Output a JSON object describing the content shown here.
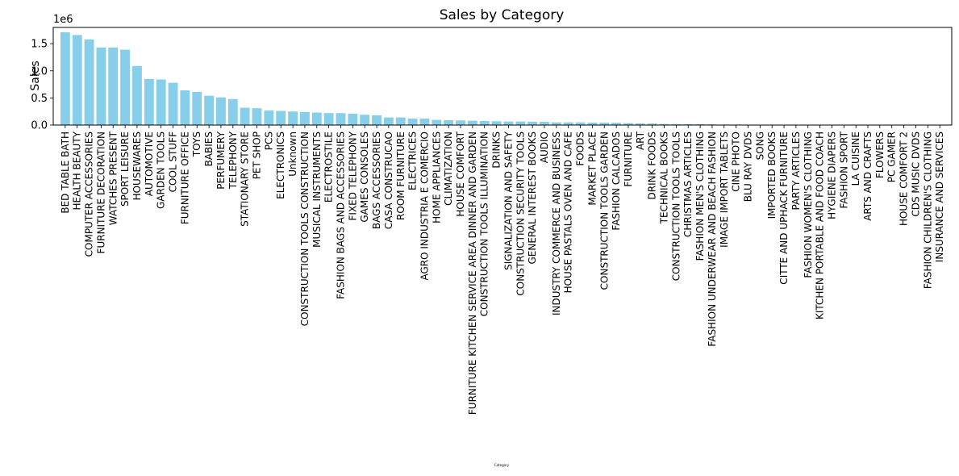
{
  "chart_data": {
    "type": "bar",
    "title": "Sales by Category",
    "xlabel": "Category",
    "ylabel": "Sales",
    "y_multiplier_label": "1e6",
    "ylim": [
      0,
      1.8
    ],
    "yticks": [
      0.0,
      0.5,
      1.0,
      1.5
    ],
    "ytick_labels": [
      "0.0",
      "0.5",
      "1.0",
      "1.5"
    ],
    "bar_color": "#87ceeb",
    "grid": false,
    "categories": [
      "BED TABLE BATH",
      "HEALTH BEAUTY",
      "COMPUTER ACCESSORIES",
      "FURNITURE DECORATION",
      "WATCHES PRESENT",
      "SPORT LEISURE",
      "HOUSEWARES",
      "AUTOMOTIVE",
      "GARDEN TOOLS",
      "COOL STUFF",
      "FURNITURE OFFICE",
      "TOYS",
      "BABIES",
      "PERFUMERY",
      "TELEPHONY",
      "STATIONARY STORE",
      "PET SHOP",
      "PCS",
      "ELECTRONICS",
      "Unknown",
      "CONSTRUCTION TOOLS CONSTRUCTION",
      "MUSICAL INSTRUMENTS",
      "ELECTROSTILE",
      "FASHION BAGS AND ACCESSORIES",
      "FIXED TELEPHONY",
      "GAMES CONSOLES",
      "BAGS ACCESSORIES",
      "CASA CONSTRUCAO",
      "ROOM FURNITURE",
      "ELECTRICES",
      "AGRO INDUSTRIA E COMERCIO",
      "HOME APPLIANCES",
      "CLIMATIZATION",
      "HOUSE COMFORT",
      "FURNITURE KITCHEN SERVICE AREA DINNER AND GARDEN",
      "CONSTRUCTION TOOLS ILLUMINATION",
      "DRINKS",
      "SIGNALIZATION AND SAFETY",
      "CONSTRUCTION SECURITY TOOLS",
      "GENERAL INTEREST BOOKS",
      "AUDIO",
      "INDUSTRY COMMERCE AND BUSINESS",
      "HOUSE PASTALS OVEN AND CAFE",
      "FOODS",
      "MARKET PLACE",
      "CONSTRUCTION TOOLS GARDEN",
      "FASHION CALCADOS",
      "FURNITURE",
      "ART",
      "DRINK FOODS",
      "TECHNICAL BOOKS",
      "CONSTRUCTION TOOLS TOOLS",
      "CHRISTMAS ARTICLES",
      "FASHION MEN'S CLOTHING",
      "FASHION UNDERWEAR AND BEACH FASHION",
      "IMAGE IMPORT TABLETS",
      "CINE PHOTO",
      "BLU RAY DVDS",
      "SONG",
      "IMPORTED BOOKS",
      "CITTE AND UPHACK FURNITURE",
      "PARTY ARTICLES",
      "FASHION WOMEN'S CLOTHING",
      "KITCHEN PORTABLE AND FOOD COACH",
      "HYGIENE DIAPERS",
      "FASHION SPORT",
      "LA CUISINE",
      "ARTS AND CRAFTS",
      "FLOWERS",
      "PC GAMER",
      "HOUSE COMFORT 2",
      "CDS MUSIC DVDS",
      "FASHION CHILDREN'S CLOTHING",
      "INSURANCE AND SERVICES"
    ],
    "values": [
      1.71,
      1.66,
      1.58,
      1.43,
      1.43,
      1.39,
      1.09,
      0.85,
      0.84,
      0.78,
      0.64,
      0.61,
      0.54,
      0.51,
      0.48,
      0.32,
      0.31,
      0.27,
      0.26,
      0.25,
      0.24,
      0.23,
      0.22,
      0.22,
      0.21,
      0.19,
      0.18,
      0.14,
      0.14,
      0.12,
      0.12,
      0.095,
      0.09,
      0.085,
      0.08,
      0.075,
      0.07,
      0.065,
      0.065,
      0.062,
      0.06,
      0.05,
      0.05,
      0.05,
      0.045,
      0.045,
      0.042,
      0.035,
      0.03,
      0.028,
      0.02,
      0.018,
      0.016,
      0.015,
      0.013,
      0.01,
      0.009,
      0.008,
      0.007,
      0.006,
      0.005,
      0.005,
      0.004,
      0.004,
      0.003,
      0.003,
      0.003,
      0.002,
      0.002,
      0.002,
      0.001,
      0.001,
      0.001,
      0.001
    ]
  }
}
